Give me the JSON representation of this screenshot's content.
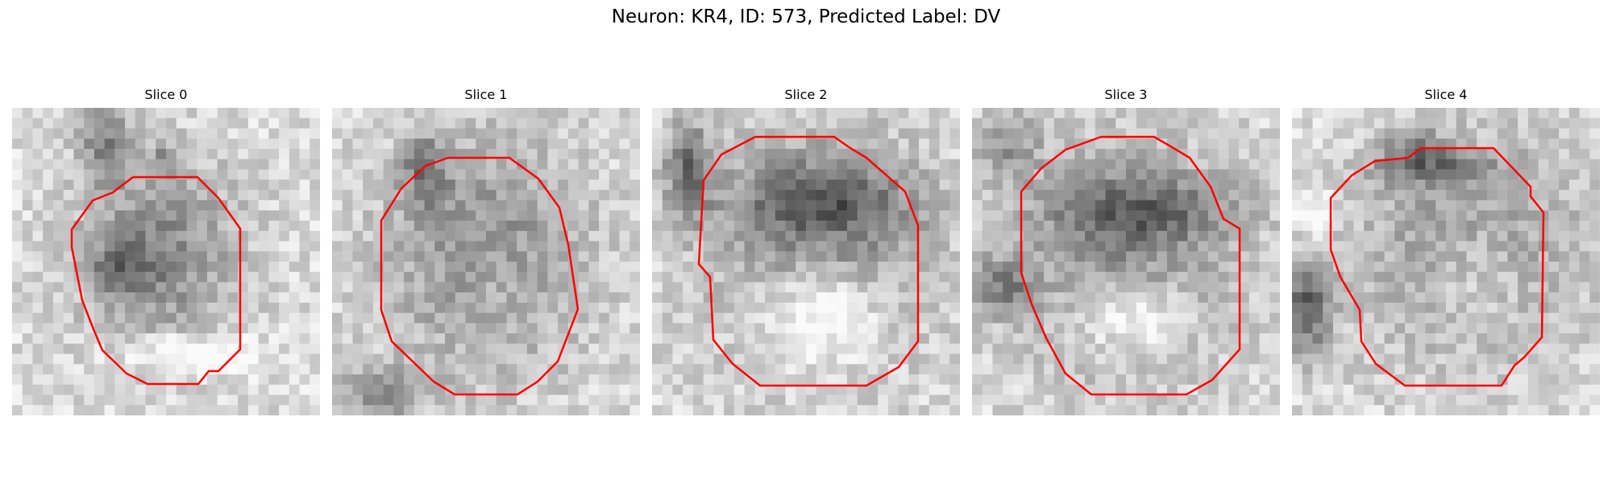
{
  "figure": {
    "title": "Neuron: KR4, ID: 573, Predicted Label: DV",
    "panels": [
      {
        "title": "Slice 0",
        "contour_color": "#ff0000",
        "blobs": [
          [
            0.48,
            0.47,
            0.26,
            0.3,
            0.32
          ],
          [
            0.35,
            0.52,
            0.1,
            0.1,
            0.25
          ],
          [
            0.3,
            0.1,
            0.08,
            0.15,
            0.3
          ],
          [
            0.5,
            0.17,
            0.06,
            0.06,
            0.2
          ]
        ],
        "bright": [
          [
            0.58,
            0.8,
            0.2,
            0.06,
            0.3
          ]
        ]
      },
      {
        "title": "Slice 1",
        "contour_color": "#ff0000",
        "blobs": [
          [
            0.5,
            0.48,
            0.34,
            0.38,
            0.3
          ],
          [
            0.3,
            0.2,
            0.08,
            0.12,
            0.3
          ],
          [
            0.15,
            0.93,
            0.15,
            0.08,
            0.3
          ]
        ],
        "bright": [
          [
            0.55,
            0.6,
            0.14,
            0.14,
            0.1
          ]
        ]
      },
      {
        "title": "Slice 2",
        "contour_color": "#ff0000",
        "blobs": [
          [
            0.55,
            0.45,
            0.37,
            0.38,
            0.3
          ],
          [
            0.12,
            0.2,
            0.07,
            0.15,
            0.45
          ],
          [
            0.55,
            0.3,
            0.28,
            0.12,
            0.3
          ]
        ],
        "bright": [
          [
            0.55,
            0.67,
            0.2,
            0.16,
            0.35
          ]
        ]
      },
      {
        "title": "Slice 3",
        "contour_color": "#ff0000",
        "blobs": [
          [
            0.5,
            0.48,
            0.38,
            0.38,
            0.28
          ],
          [
            0.12,
            0.12,
            0.1,
            0.1,
            0.25
          ],
          [
            0.1,
            0.58,
            0.1,
            0.1,
            0.3
          ],
          [
            0.55,
            0.33,
            0.3,
            0.1,
            0.3
          ]
        ],
        "bright": [
          [
            0.52,
            0.68,
            0.18,
            0.12,
            0.3
          ]
        ]
      },
      {
        "title": "Slice 4",
        "contour_color": "#ff0000",
        "blobs": [
          [
            0.58,
            0.47,
            0.37,
            0.36,
            0.28
          ],
          [
            0.05,
            0.65,
            0.08,
            0.15,
            0.45
          ],
          [
            0.4,
            0.12,
            0.1,
            0.06,
            0.25
          ],
          [
            0.45,
            0.2,
            0.2,
            0.06,
            0.3
          ]
        ],
        "bright": [
          [
            0.6,
            0.55,
            0.16,
            0.18,
            0.2
          ],
          [
            0.08,
            0.35,
            0.06,
            0.08,
            0.2
          ]
        ]
      }
    ]
  }
}
